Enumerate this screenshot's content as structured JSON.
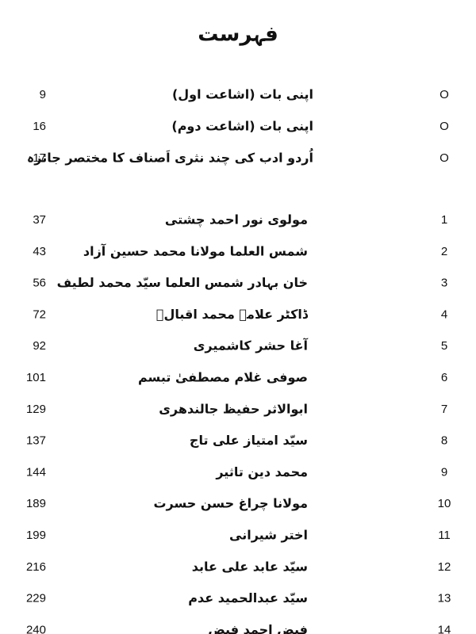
{
  "title": "فہرست",
  "intro": [
    {
      "marker": "O",
      "title": "اپنی بات (اشاعت اول)",
      "page": 9
    },
    {
      "marker": "O",
      "title": "اپنی بات (اشاعت دوم)",
      "page": 16
    },
    {
      "marker": "O",
      "title": "اُردو ادب کی چند نثری اَصناف کا مختصر جائزہ",
      "page": 17
    }
  ],
  "chapters": [
    {
      "number": 1,
      "title": "مولوی نور احمد چشتی",
      "page": 37
    },
    {
      "number": 2,
      "title": "شمس العلما مولانا محمد حسین آزاد",
      "page": 43
    },
    {
      "number": 3,
      "title": "خان بہادر شمس العلما سیّد محمد لطیف",
      "page": 56
    },
    {
      "number": 4,
      "title": "ڈاکٹر علامہ محمد اقبالؒ",
      "page": 72
    },
    {
      "number": 5,
      "title": "آغا حشر کاشمیری",
      "page": 92
    },
    {
      "number": 6,
      "title": "صوفی غلام مصطفیٰ تبسم",
      "page": 101
    },
    {
      "number": 7,
      "title": "ابوالاثر حفیظ جالندھری",
      "page": 129
    },
    {
      "number": 8,
      "title": "سیّد امتیاز علی تاج",
      "page": 137
    },
    {
      "number": 9,
      "title": "محمد دین تاثیر",
      "page": 144
    },
    {
      "number": 10,
      "title": "مولانا چراغ حسن حسرت",
      "page": 189
    },
    {
      "number": 11,
      "title": "اختر شیرانی",
      "page": 199
    },
    {
      "number": 12,
      "title": "سیّد عابد علی عابد",
      "page": 216
    },
    {
      "number": 13,
      "title": "سیّد عبدالحمید عدم",
      "page": 229
    },
    {
      "number": 14,
      "title": "فیض احمد فیض",
      "page": 240
    }
  ]
}
